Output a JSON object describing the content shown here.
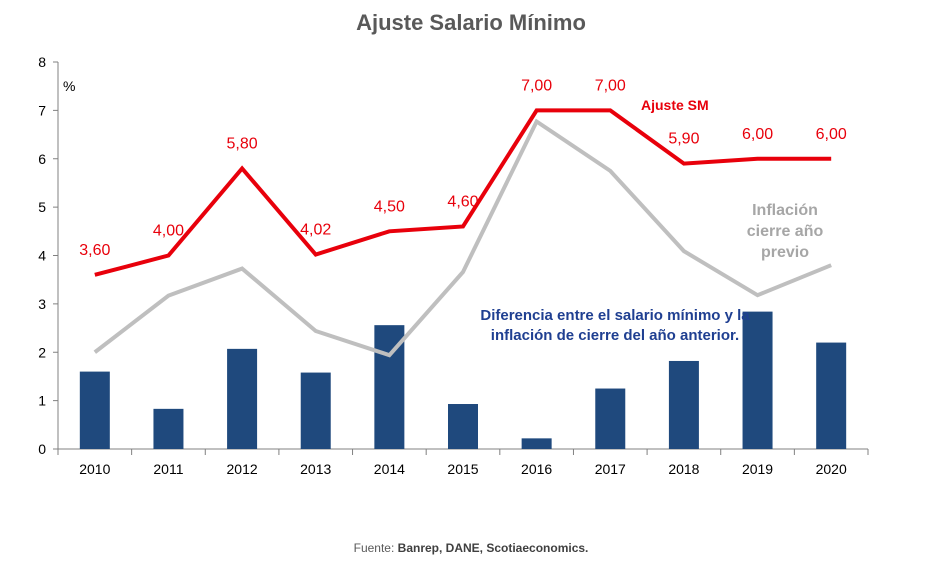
{
  "title": "Ajuste Salario Mínimo",
  "unit_label": "%",
  "source": {
    "prefix": "Fuente: ",
    "text": "Banrep, DANE, Scotiaeconomics."
  },
  "annotations": {
    "series_sm": "Ajuste SM",
    "series_inflation": "Inflación cierre año previo",
    "series_difference": "Diferencia entre el salario mínimo y la inflación de cierre del año anterior."
  },
  "colors": {
    "bars": "#1f497d",
    "sm_line": "#e8000b",
    "inflation_line": "#bfbfbf",
    "axis": "#808080"
  },
  "chart_data": {
    "type": "bar",
    "title": "Ajuste Salario Mínimo",
    "xlabel": "",
    "ylabel": "%",
    "ylim": [
      0,
      8
    ],
    "yticks": [
      0,
      1,
      2,
      3,
      4,
      5,
      6,
      7,
      8
    ],
    "grid": false,
    "categories": [
      "2010",
      "2011",
      "2012",
      "2013",
      "2014",
      "2015",
      "2016",
      "2017",
      "2018",
      "2019",
      "2020"
    ],
    "series": [
      {
        "name": "Diferencia entre el salario mínimo y la inflación de cierre del año anterior.",
        "type": "bar",
        "values": [
          1.6,
          0.83,
          2.07,
          1.58,
          2.56,
          0.93,
          0.22,
          1.25,
          1.82,
          2.84,
          2.2
        ]
      },
      {
        "name": "Ajuste SM",
        "type": "line",
        "values": [
          3.6,
          4.0,
          5.8,
          4.02,
          4.5,
          4.6,
          7.0,
          7.0,
          5.9,
          6.0,
          6.0
        ],
        "data_labels": [
          "3,60",
          "4,00",
          "5,80",
          "4,02",
          "4,50",
          "4,60",
          "7,00",
          "7,00",
          "5,90",
          "6,00",
          "6,00"
        ]
      },
      {
        "name": "Inflación cierre año previo",
        "type": "line",
        "values": [
          2.0,
          3.17,
          3.73,
          2.44,
          1.94,
          3.66,
          6.77,
          5.75,
          4.09,
          3.18,
          3.8
        ]
      }
    ]
  }
}
